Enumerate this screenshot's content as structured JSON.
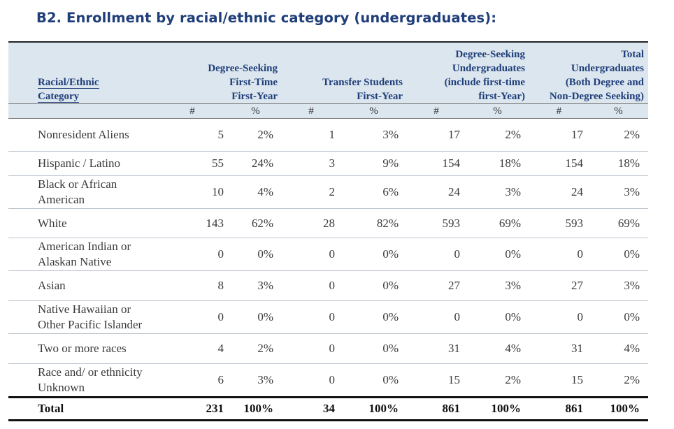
{
  "title": "B2. Enrollment by racial/ethnic category (undergraduates):",
  "header": {
    "category": [
      "Racial/Ethnic",
      "Category"
    ],
    "groups": [
      {
        "lines": [
          "Degree-Seeking",
          "First-Time",
          "First-Year"
        ]
      },
      {
        "lines": [
          "Transfer Students",
          "First-Year"
        ]
      },
      {
        "lines": [
          "Degree-Seeking",
          "Undergraduates",
          "(include first-time",
          "first-Year)"
        ]
      },
      {
        "lines": [
          "Total",
          "Undergraduates",
          "(Both Degree and",
          "Non-Degree Seeking)"
        ]
      }
    ],
    "sub": [
      "#",
      "%",
      "#",
      "%",
      "#",
      "%",
      "#",
      "%"
    ]
  },
  "rows": [
    {
      "label": [
        "Nonresident Aliens"
      ],
      "values": [
        "5",
        "2%",
        "1",
        "3%",
        "17",
        "2%",
        "17",
        "2%"
      ]
    },
    {
      "label": [
        "Hispanic / Latino"
      ],
      "values": [
        "55",
        "24%",
        "3",
        "9%",
        "154",
        "18%",
        "154",
        "18%"
      ]
    },
    {
      "label": [
        "Black or African",
        "American"
      ],
      "values": [
        "10",
        "4%",
        "2",
        "6%",
        "24",
        "3%",
        "24",
        "3%"
      ]
    },
    {
      "label": [
        "White"
      ],
      "values": [
        "143",
        "62%",
        "28",
        "82%",
        "593",
        "69%",
        "593",
        "69%"
      ]
    },
    {
      "label": [
        "American Indian or",
        "Alaskan Native"
      ],
      "values": [
        "0",
        "0%",
        "0",
        "0%",
        "0",
        "0%",
        "0",
        "0%"
      ]
    },
    {
      "label": [
        "Asian"
      ],
      "values": [
        "8",
        "3%",
        "0",
        "0%",
        "27",
        "3%",
        "27",
        "3%"
      ]
    },
    {
      "label": [
        "Native Hawaiian or",
        "Other Pacific Islander"
      ],
      "values": [
        "0",
        "0%",
        "0",
        "0%",
        "0",
        "0%",
        "0",
        "0%"
      ]
    },
    {
      "label": [
        "Two or more races"
      ],
      "values": [
        "4",
        "2%",
        "0",
        "0%",
        "31",
        "4%",
        "31",
        "4%"
      ]
    },
    {
      "label": [
        "Race and/ or ethnicity",
        "Unknown"
      ],
      "values": [
        "6",
        "3%",
        "0",
        "0%",
        "15",
        "2%",
        "15",
        "2%"
      ]
    }
  ],
  "total": {
    "label": "Total",
    "values": [
      "231",
      "100%",
      "34",
      "100%",
      "861",
      "100%",
      "861",
      "100%"
    ]
  }
}
